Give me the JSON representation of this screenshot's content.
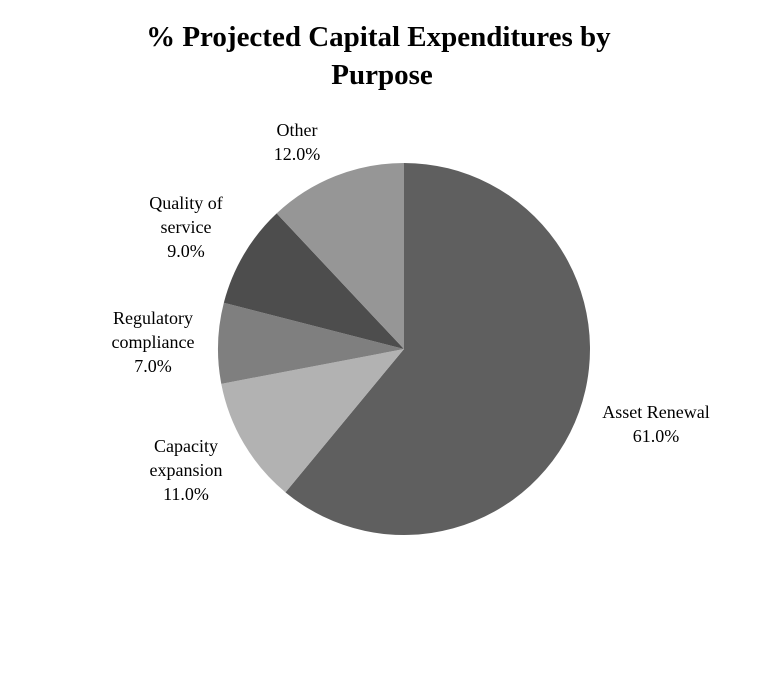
{
  "chart_data": {
    "type": "pie",
    "title_lines": [
      "% Projected Capital Expenditures by",
      "Purpose"
    ],
    "slices": [
      {
        "label_lines": [
          "Asset Renewal"
        ],
        "value": 61.0,
        "value_label": "61.0%",
        "color": "#5f5f5f"
      },
      {
        "label_lines": [
          "Capacity",
          "expansion"
        ],
        "value": 11.0,
        "value_label": "11.0%",
        "color": "#b2b2b2"
      },
      {
        "label_lines": [
          "Regulatory",
          "compliance"
        ],
        "value": 7.0,
        "value_label": "7.0%",
        "color": "#7f7f7f"
      },
      {
        "label_lines": [
          "Quality of",
          "service"
        ],
        "value": 9.0,
        "value_label": "9.0%",
        "color": "#4d4d4d"
      },
      {
        "label_lines": [
          "Other"
        ],
        "value": 12.0,
        "value_label": "12.0%",
        "color": "#969696"
      }
    ],
    "start": "12 o'clock",
    "direction": "clockwise",
    "legend": "none",
    "labels": "outside"
  }
}
